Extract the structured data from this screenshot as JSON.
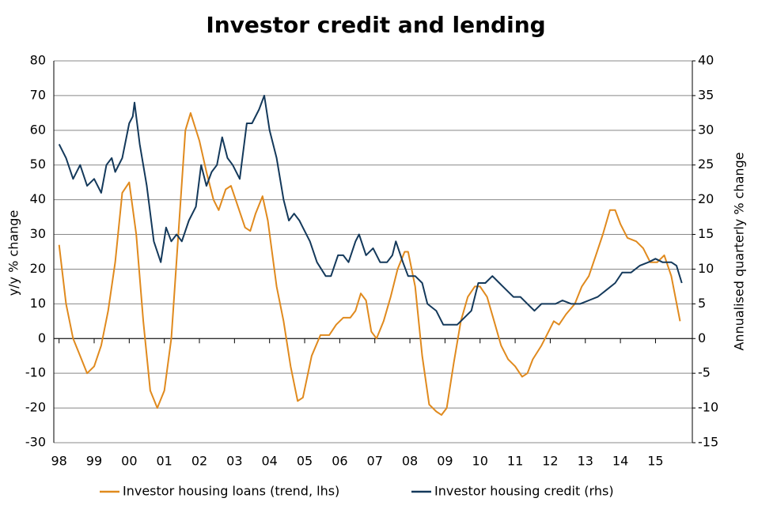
{
  "chart_data": {
    "type": "line",
    "title": "Investor credit and lending",
    "ylabel": "y/y % change",
    "y2label": "Annualised quarterly % change",
    "xlim": [
      1997.85,
      2016.05
    ],
    "xticks": [
      {
        "value": 1998,
        "label": "98"
      },
      {
        "value": 1999,
        "label": "99"
      },
      {
        "value": 2000,
        "label": "00"
      },
      {
        "value": 2001,
        "label": "01"
      },
      {
        "value": 2002,
        "label": "02"
      },
      {
        "value": 2003,
        "label": "03"
      },
      {
        "value": 2004,
        "label": "04"
      },
      {
        "value": 2005,
        "label": "05"
      },
      {
        "value": 2006,
        "label": "06"
      },
      {
        "value": 2007,
        "label": "07"
      },
      {
        "value": 2008,
        "label": "08"
      },
      {
        "value": 2009,
        "label": "09"
      },
      {
        "value": 2010,
        "label": "10"
      },
      {
        "value": 2011,
        "label": "11"
      },
      {
        "value": 2012,
        "label": "12"
      },
      {
        "value": 2013,
        "label": "13"
      },
      {
        "value": 2014,
        "label": "14"
      },
      {
        "value": 2015,
        "label": "15"
      }
    ],
    "ylim": [
      -30,
      80
    ],
    "yticks": [
      80,
      70,
      60,
      50,
      40,
      30,
      20,
      10,
      0,
      -10,
      -20,
      -30
    ],
    "y2lim": [
      -15,
      40
    ],
    "y2ticks": [
      40,
      35,
      30,
      25,
      20,
      15,
      10,
      5,
      0,
      -5,
      -10,
      -15
    ],
    "grid": true,
    "legend": "bottom",
    "series": [
      {
        "name": "Investor housing loans (trend, lhs)",
        "color": "#e08a1e",
        "axis": "y",
        "x": [
          1998.0,
          1998.2,
          1998.4,
          1998.6,
          1998.8,
          1999.0,
          1999.2,
          1999.4,
          1999.6,
          1999.8,
          2000.0,
          2000.2,
          2000.4,
          2000.6,
          2000.8,
          2001.0,
          2001.2,
          2001.4,
          2001.6,
          2001.75,
          2002.0,
          2002.2,
          2002.4,
          2002.55,
          2002.75,
          2002.9,
          2003.1,
          2003.3,
          2003.45,
          2003.6,
          2003.8,
          2003.95,
          2004.2,
          2004.4,
          2004.6,
          2004.8,
          2004.95,
          2005.2,
          2005.45,
          2005.7,
          2005.9,
          2006.1,
          2006.3,
          2006.45,
          2006.6,
          2006.75,
          2006.9,
          2007.05,
          2007.25,
          2007.45,
          2007.65,
          2007.85,
          2007.95,
          2008.15,
          2008.35,
          2008.55,
          2008.75,
          2008.9,
          2009.05,
          2009.25,
          2009.45,
          2009.65,
          2009.85,
          2010.0,
          2010.2,
          2010.4,
          2010.6,
          2010.8,
          2011.0,
          2011.2,
          2011.35,
          2011.5,
          2011.75,
          2011.9,
          2012.1,
          2012.25,
          2012.45,
          2012.7,
          2012.9,
          2013.1,
          2013.3,
          2013.5,
          2013.7,
          2013.85,
          2014.0,
          2014.2,
          2014.45,
          2014.65,
          2014.85,
          2015.05,
          2015.25,
          2015.45,
          2015.7
        ],
        "values": [
          27,
          10,
          0,
          -5,
          -10,
          -8,
          -2,
          8,
          22,
          42,
          45,
          30,
          5,
          -15,
          -20,
          -15,
          0,
          30,
          60,
          65,
          57,
          48,
          40,
          37,
          43,
          44,
          38,
          32,
          31,
          36,
          41,
          34,
          15,
          5,
          -8,
          -18,
          -17,
          -5,
          1,
          1,
          4,
          6,
          6,
          8,
          13,
          11,
          2,
          0,
          5,
          12,
          20,
          25,
          25,
          15,
          -5,
          -19,
          -21,
          -22,
          -20,
          -7,
          5,
          12,
          15,
          15,
          12,
          5,
          -2,
          -6,
          -8,
          -11,
          -10,
          -6,
          -2,
          1,
          5,
          4,
          7,
          10,
          15,
          18,
          24,
          30,
          37,
          37,
          33,
          29,
          28,
          26,
          22,
          22,
          24,
          18,
          5
        ]
      },
      {
        "name": "Investor housing credit (rhs)",
        "color": "#14395b",
        "axis": "y2",
        "x": [
          1998.0,
          1998.2,
          1998.4,
          1998.6,
          1998.8,
          1999.0,
          1999.2,
          1999.35,
          1999.5,
          1999.6,
          1999.8,
          2000.0,
          2000.1,
          2000.15,
          2000.3,
          2000.5,
          2000.7,
          2000.9,
          2001.05,
          2001.2,
          2001.35,
          2001.5,
          2001.7,
          2001.9,
          2002.05,
          2002.2,
          2002.35,
          2002.5,
          2002.65,
          2002.8,
          2002.95,
          2003.15,
          2003.35,
          2003.5,
          2003.7,
          2003.85,
          2004.0,
          2004.2,
          2004.4,
          2004.55,
          2004.7,
          2004.85,
          2004.95,
          2005.15,
          2005.35,
          2005.6,
          2005.75,
          2005.95,
          2006.1,
          2006.25,
          2006.45,
          2006.55,
          2006.75,
          2006.95,
          2007.15,
          2007.35,
          2007.5,
          2007.6,
          2007.8,
          2007.95,
          2008.15,
          2008.35,
          2008.5,
          2008.75,
          2008.95,
          2009.15,
          2009.35,
          2009.55,
          2009.75,
          2009.95,
          2010.15,
          2010.35,
          2010.55,
          2010.75,
          2010.95,
          2011.15,
          2011.35,
          2011.55,
          2011.75,
          2011.95,
          2012.15,
          2012.35,
          2012.6,
          2012.85,
          2013.1,
          2013.35,
          2013.6,
          2013.85,
          2014.05,
          2014.3,
          2014.55,
          2014.8,
          2015.0,
          2015.2,
          2015.45,
          2015.6,
          2015.75
        ],
        "values": [
          28,
          26,
          23,
          25,
          22,
          23,
          21,
          25,
          26,
          24,
          26,
          31,
          32,
          34,
          28,
          22,
          14,
          11,
          16,
          14,
          15,
          14,
          17,
          19,
          25,
          22,
          24,
          25,
          29,
          26,
          25,
          23,
          31,
          31,
          33,
          35,
          30,
          26,
          20,
          17,
          18,
          17,
          16,
          14,
          11,
          9,
          9,
          12,
          12,
          11,
          14,
          15,
          12,
          13,
          11,
          11,
          12,
          14,
          11,
          9,
          9,
          8,
          5,
          4,
          2,
          2,
          2,
          3,
          4,
          8,
          8,
          9,
          8,
          7,
          6,
          6,
          5,
          4,
          5,
          5,
          5,
          5.5,
          5,
          5,
          5.5,
          6,
          7,
          8,
          9.5,
          9.5,
          10.5,
          11,
          11.5,
          11,
          11,
          10.5,
          8
        ]
      }
    ]
  }
}
